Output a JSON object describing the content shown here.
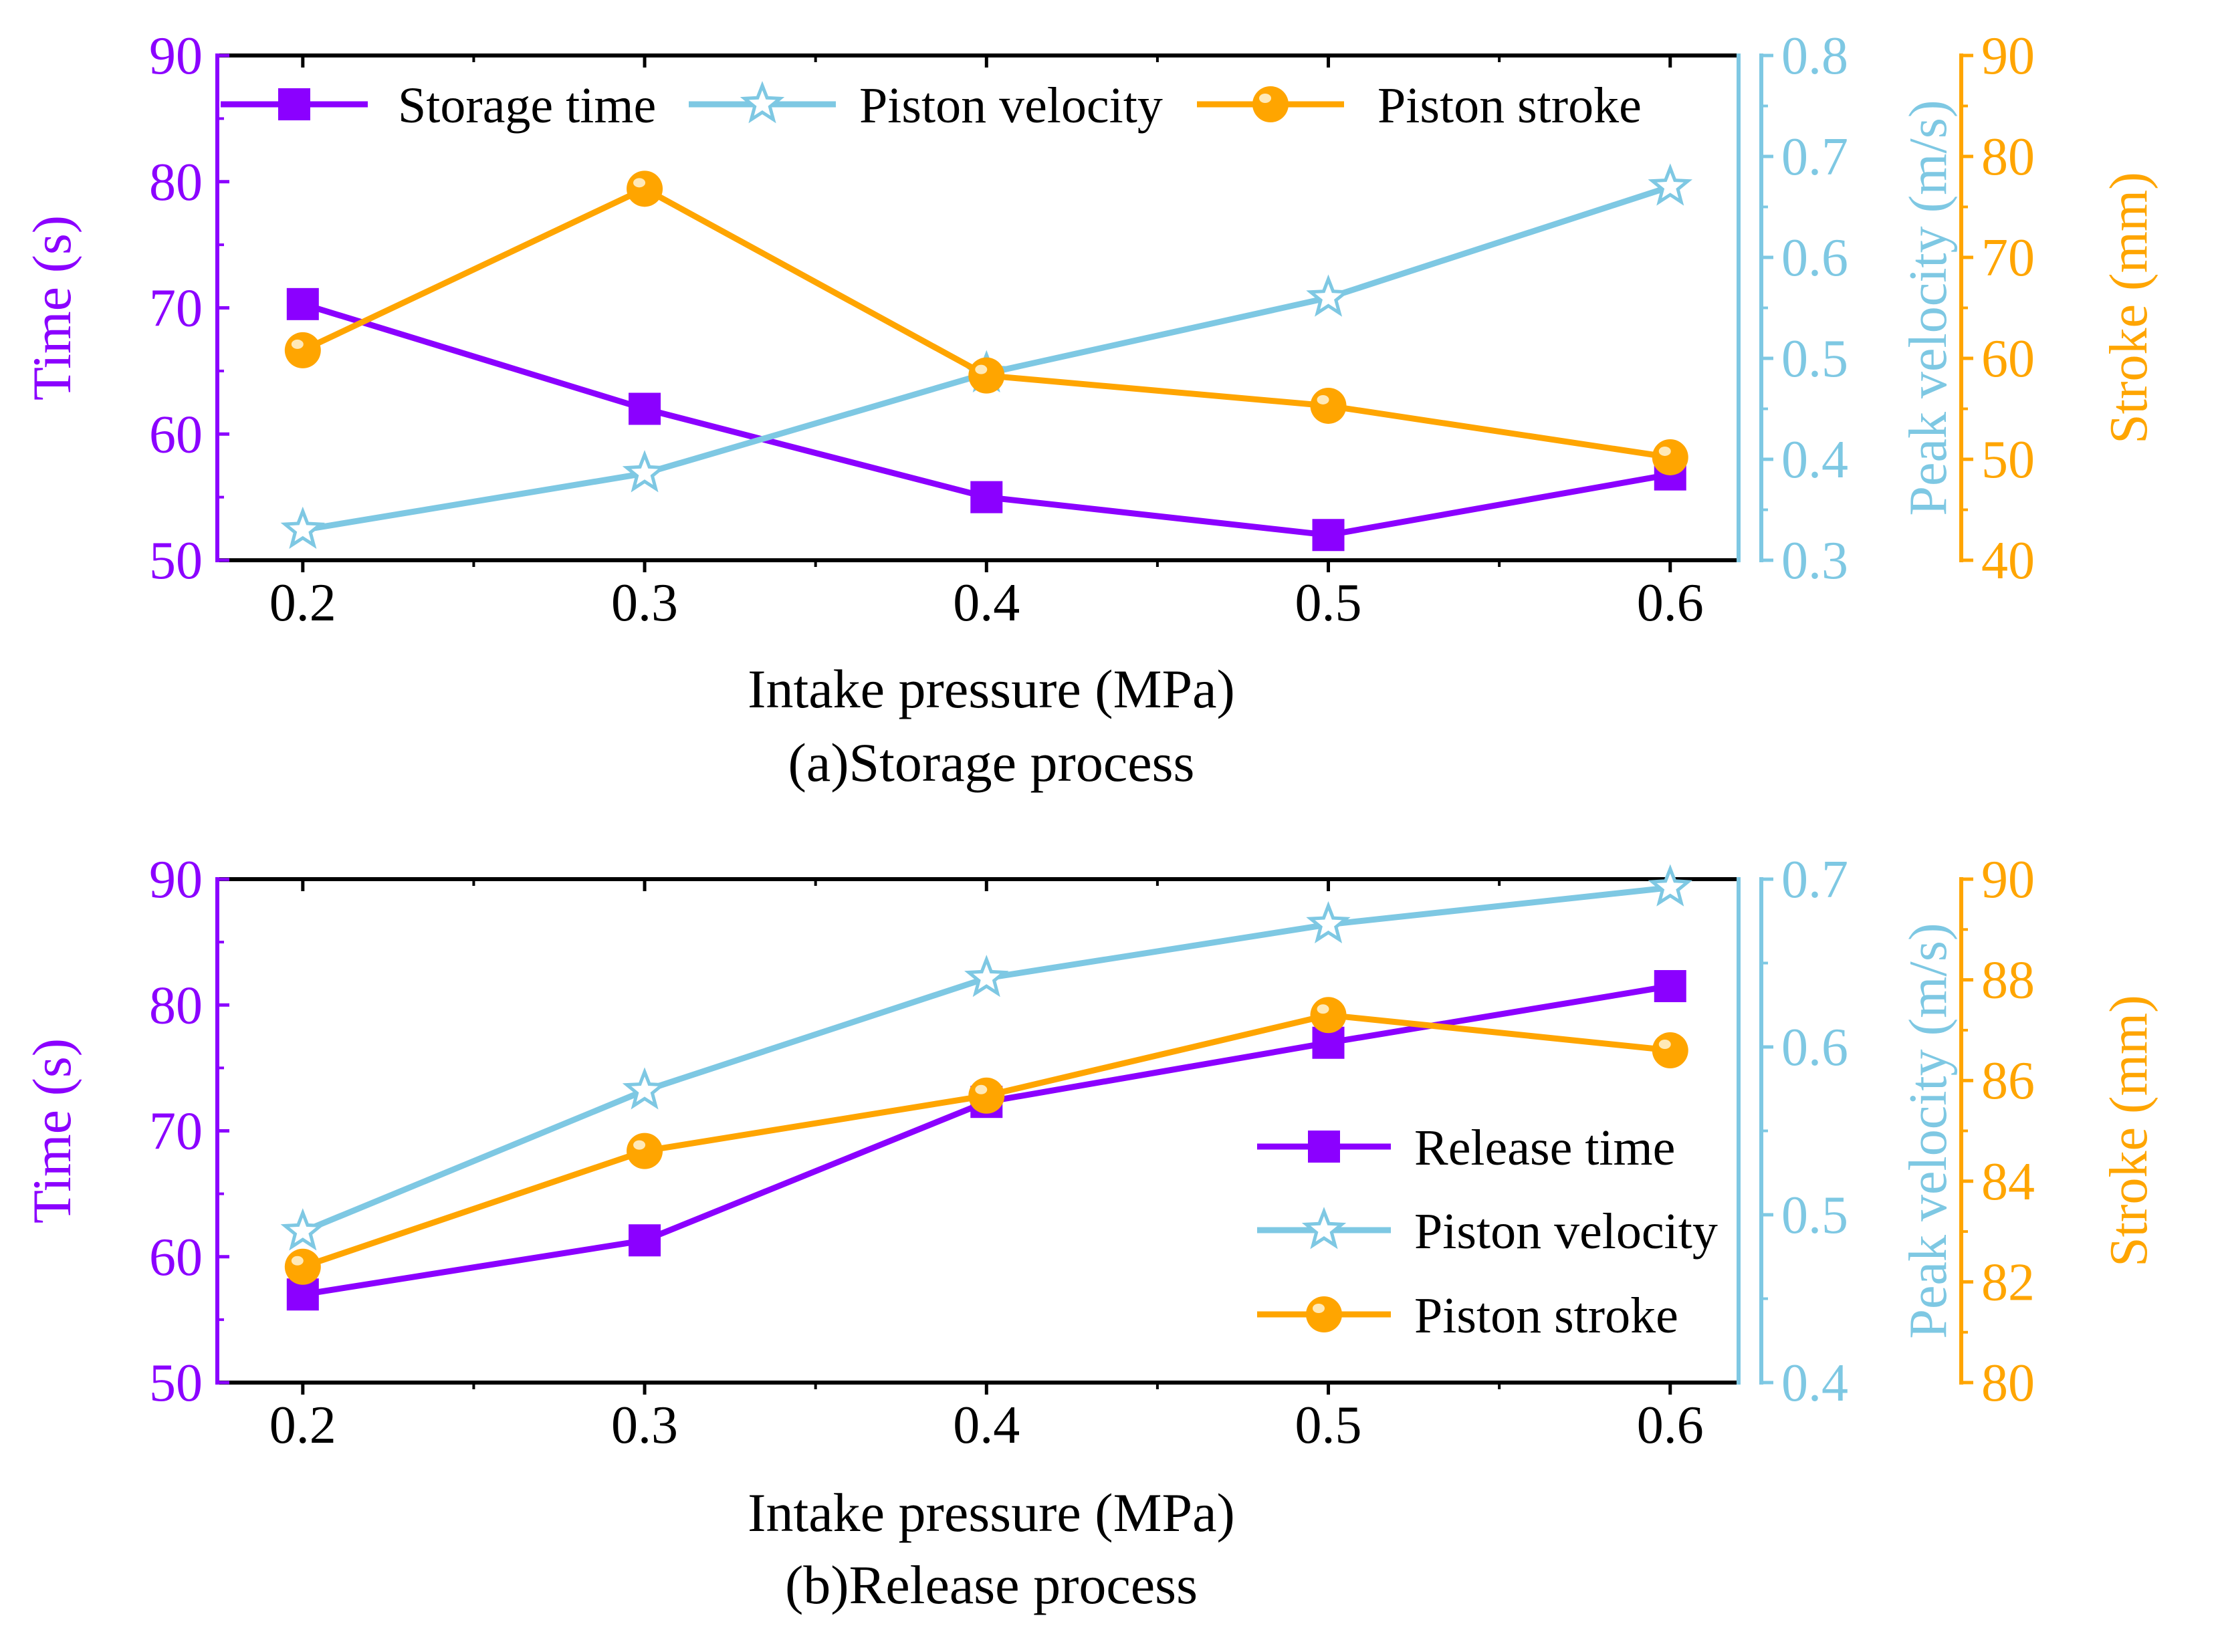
{
  "colors": {
    "time": "#8B00FF",
    "velocity": "#7EC8E3",
    "stroke": "#FFA500",
    "axis": "#000000"
  },
  "chart_data": [
    {
      "type": "line",
      "panel": "a",
      "caption": "(a)Storage process",
      "xlabel": "Intake pressure (MPa)",
      "x": [
        0.2,
        0.3,
        0.4,
        0.5,
        0.6
      ],
      "x_tick_labels": [
        "0.2",
        "0.3",
        "0.4",
        "0.5",
        "0.6"
      ],
      "xlim": [
        0.175,
        0.62
      ],
      "legend_position": "top",
      "axes": {
        "left": {
          "label": "Time (s)",
          "ylim": [
            50,
            90
          ],
          "ticks": [
            50,
            60,
            70,
            80,
            90
          ],
          "tick_labels": [
            "50",
            "60",
            "70",
            "80",
            "90"
          ]
        },
        "right1": {
          "label": "Peak velocity (m/s)",
          "ylim": [
            0.3,
            0.8
          ],
          "ticks": [
            0.3,
            0.4,
            0.5,
            0.6,
            0.7,
            0.8
          ],
          "tick_labels": [
            "0.3",
            "0.4",
            "0.5",
            "0.6",
            "0.7",
            "0.8"
          ]
        },
        "right2": {
          "label": "Stroke (mm)",
          "ylim": [
            40,
            90
          ],
          "ticks": [
            40,
            50,
            60,
            70,
            80,
            90
          ],
          "tick_labels": [
            "40",
            "50",
            "60",
            "70",
            "80",
            "90"
          ]
        }
      },
      "series": [
        {
          "name": "Storage time",
          "axis": "left",
          "marker": "square",
          "color_key": "time",
          "values": [
            70.3,
            62.0,
            55.0,
            52.0,
            56.8
          ]
        },
        {
          "name": "Piston velocity",
          "axis": "right1",
          "marker": "star",
          "color_key": "velocity",
          "values": [
            0.33,
            0.386,
            0.485,
            0.56,
            0.67
          ]
        },
        {
          "name": "Piston stroke",
          "axis": "right2",
          "marker": "circle",
          "color_key": "stroke",
          "values": [
            60.8,
            76.8,
            58.3,
            55.3,
            50.2
          ]
        }
      ]
    },
    {
      "type": "line",
      "panel": "b",
      "caption": "(b)Release process",
      "xlabel": "Intake pressure (MPa)",
      "x": [
        0.2,
        0.3,
        0.4,
        0.5,
        0.6
      ],
      "x_tick_labels": [
        "0.2",
        "0.3",
        "0.4",
        "0.5",
        "0.6"
      ],
      "xlim": [
        0.175,
        0.62
      ],
      "legend_position": "bottom-right",
      "axes": {
        "left": {
          "label": "Time (s)",
          "ylim": [
            50,
            90
          ],
          "ticks": [
            50,
            60,
            70,
            80,
            90
          ],
          "tick_labels": [
            "50",
            "60",
            "70",
            "80",
            "90"
          ]
        },
        "right1": {
          "label": "Peak velocity (m/s)",
          "ylim": [
            0.4,
            0.7
          ],
          "ticks": [
            0.4,
            0.5,
            0.6,
            0.7
          ],
          "tick_labels": [
            "0.4",
            "0.5",
            "0.6",
            "0.7"
          ]
        },
        "right2": {
          "label": "Stroke (mm)",
          "ylim": [
            80,
            90
          ],
          "ticks": [
            80,
            82,
            84,
            86,
            88,
            90
          ],
          "tick_labels": [
            "80",
            "82",
            "84",
            "86",
            "88",
            "90"
          ]
        }
      },
      "series": [
        {
          "name": "Release time",
          "axis": "left",
          "marker": "square",
          "color_key": "time",
          "values": [
            57.0,
            61.3,
            72.3,
            77.0,
            81.5
          ]
        },
        {
          "name": "Piston velocity",
          "axis": "right1",
          "marker": "star",
          "color_key": "velocity",
          "values": [
            0.49,
            0.574,
            0.641,
            0.673,
            0.695
          ]
        },
        {
          "name": "Piston stroke",
          "axis": "right2",
          "marker": "circle",
          "color_key": "stroke",
          "values": [
            82.3,
            84.6,
            85.7,
            87.3,
            86.6
          ]
        }
      ]
    }
  ]
}
